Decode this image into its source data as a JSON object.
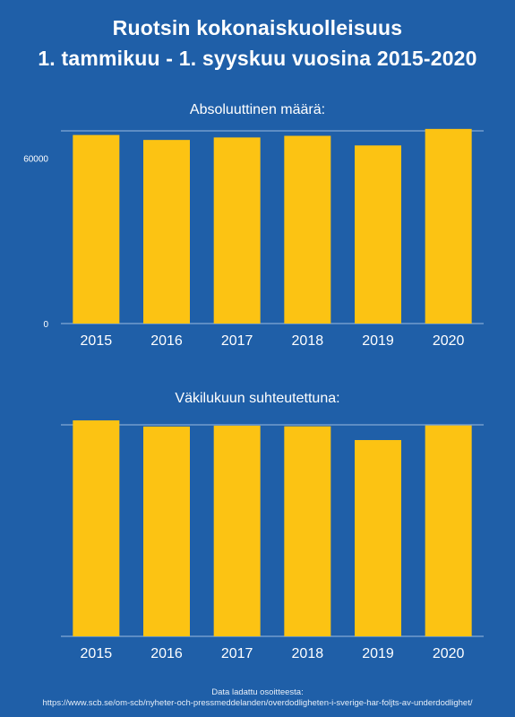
{
  "header": {
    "title_line1": "Ruotsin kokonaiskuolleisuus",
    "title_line2": "1. tammikuu - 1. syyskuu vuosina 2015-2020"
  },
  "colors": {
    "background": "#1f5fa8",
    "bar": "#fcc313",
    "axis_line": "#9bbbe0",
    "text": "#ffffff"
  },
  "chart_data": [
    {
      "type": "bar",
      "title": "Absoluuttinen määrä:",
      "categories": [
        "2015",
        "2016",
        "2017",
        "2018",
        "2019",
        "2020"
      ],
      "values": [
        68500,
        66700,
        67600,
        68200,
        64700,
        70700
      ],
      "yticks": [
        {
          "value": 0,
          "label": "0"
        },
        {
          "value": 60000,
          "label": "60000"
        }
      ],
      "ylim": [
        0,
        70000
      ],
      "grid": false
    },
    {
      "type": "bar",
      "title": "Väkilukuun suhteutettuna:",
      "categories": [
        "2015",
        "2016",
        "2017",
        "2018",
        "2019",
        "2020"
      ],
      "values": [
        1.021,
        0.992,
        0.996,
        0.993,
        0.928,
        0.997
      ],
      "yticks": [],
      "ylim": [
        0,
        1.0
      ],
      "grid": false
    }
  ],
  "footer": {
    "source_label": "Data ladattu osoitteesta:",
    "source_url": "https://www.scb.se/om-scb/nyheter-och-pressmeddelanden/overdodligheten-i-sverige-har-foljts-av-underdodlighet/"
  }
}
